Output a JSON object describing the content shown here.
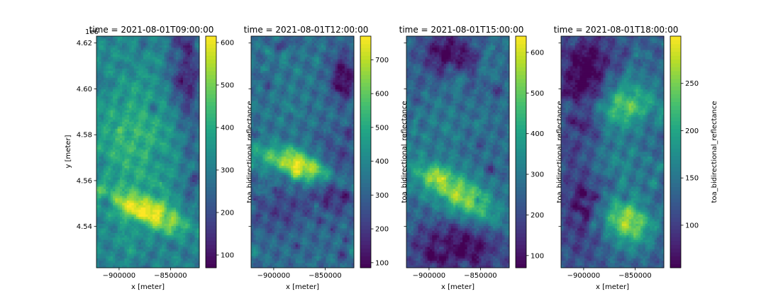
{
  "chart_data": {
    "type": "heatmap",
    "offset_text": "1e6",
    "ylabel": "y [meter]",
    "xlabel": "x [meter]",
    "xlim": [
      -922000,
      -822000
    ],
    "ylim": [
      4.522,
      4.623
    ],
    "x_ticks": [
      {
        "value": -900000,
        "label": "−900000"
      },
      {
        "value": -850000,
        "label": "−850000"
      }
    ],
    "y_ticks": [
      {
        "value": 4.54,
        "label": "4.54"
      },
      {
        "value": 4.56,
        "label": "4.56"
      },
      {
        "value": 4.58,
        "label": "4.58"
      },
      {
        "value": 4.6,
        "label": "4.60"
      },
      {
        "value": 4.62,
        "label": "4.62"
      }
    ],
    "colormap": "viridis",
    "panels": [
      {
        "title": "time = 2021-08-01T09:00:00",
        "colorbar_label": "toa_bidirectional_reflectance",
        "clim": [
          70,
          615
        ],
        "colorbar_ticks": [
          100,
          200,
          300,
          400,
          500,
          600
        ],
        "seed": 11,
        "blobs": [
          {
            "x": 0.5,
            "y": 0.76,
            "rx": 0.4,
            "ry": 0.06,
            "w": 0.55,
            "rot": -0.35
          },
          {
            "x": 0.35,
            "y": 0.45,
            "rx": 0.4,
            "ry": 0.25,
            "w": 0.2,
            "rot": 0.0
          },
          {
            "x": 0.85,
            "y": 0.12,
            "rx": 0.15,
            "ry": 0.2,
            "w": -0.35,
            "rot": 0.0
          },
          {
            "x": 0.92,
            "y": 0.5,
            "rx": 0.1,
            "ry": 0.4,
            "w": -0.15,
            "rot": 0.0
          }
        ],
        "base": 0.45
      },
      {
        "title": "time = 2021-08-01T12:00:00",
        "colorbar_label": "toa_bidirectional_reflectance",
        "clim": [
          85,
          770
        ],
        "colorbar_ticks": [
          100,
          200,
          300,
          400,
          500,
          600,
          700
        ],
        "seed": 23,
        "blobs": [
          {
            "x": 0.55,
            "y": 0.57,
            "rx": 0.5,
            "ry": 0.06,
            "w": 0.6,
            "rot": -0.3
          },
          {
            "x": 0.82,
            "y": 0.62,
            "rx": 0.2,
            "ry": 0.12,
            "w": -0.4,
            "rot": 0.0
          },
          {
            "x": 0.9,
            "y": 0.18,
            "rx": 0.12,
            "ry": 0.1,
            "w": -0.35,
            "rot": 0.0
          },
          {
            "x": 0.3,
            "y": 0.75,
            "rx": 0.3,
            "ry": 0.1,
            "w": -0.15,
            "rot": 0.0
          },
          {
            "x": 0.35,
            "y": 0.25,
            "rx": 0.3,
            "ry": 0.2,
            "w": 0.05,
            "rot": 0.0
          }
        ],
        "base": 0.35
      },
      {
        "title": "time = 2021-08-01T15:00:00",
        "colorbar_label": "toa_bidirectional_reflectance",
        "clim": [
          70,
          640
        ],
        "colorbar_ticks": [
          100,
          200,
          300,
          400,
          500,
          600
        ],
        "seed": 37,
        "blobs": [
          {
            "x": 0.5,
            "y": 0.68,
            "rx": 0.45,
            "ry": 0.08,
            "w": 0.5,
            "rot": -0.55
          },
          {
            "x": 0.4,
            "y": 0.08,
            "rx": 0.25,
            "ry": 0.1,
            "w": -0.35,
            "rot": 0.0
          },
          {
            "x": 0.5,
            "y": 0.92,
            "rx": 0.5,
            "ry": 0.12,
            "w": -0.35,
            "rot": 0.0
          },
          {
            "x": 0.3,
            "y": 0.4,
            "rx": 0.3,
            "ry": 0.2,
            "w": 0.05,
            "rot": 0.0
          }
        ],
        "base": 0.35
      },
      {
        "title": "time = 2021-08-01T18:00:00",
        "colorbar_label": "toa_bidirectional_reflectance",
        "clim": [
          55,
          300
        ],
        "colorbar_ticks": [
          100,
          150,
          200,
          250
        ],
        "seed": 53,
        "blobs": [
          {
            "x": 0.6,
            "y": 0.3,
            "rx": 0.35,
            "ry": 0.1,
            "w": 0.45,
            "rot": 0.1
          },
          {
            "x": 0.65,
            "y": 0.8,
            "rx": 0.25,
            "ry": 0.1,
            "w": 0.55,
            "rot": -0.6
          },
          {
            "x": 0.25,
            "y": 0.18,
            "rx": 0.25,
            "ry": 0.2,
            "w": -0.35,
            "rot": 0.0
          },
          {
            "x": 0.2,
            "y": 0.7,
            "rx": 0.2,
            "ry": 0.25,
            "w": -0.2,
            "rot": 0.0
          },
          {
            "x": 0.5,
            "y": 0.55,
            "rx": 0.4,
            "ry": 0.12,
            "w": 0.15,
            "rot": 0.0
          }
        ],
        "base": 0.3
      }
    ]
  }
}
